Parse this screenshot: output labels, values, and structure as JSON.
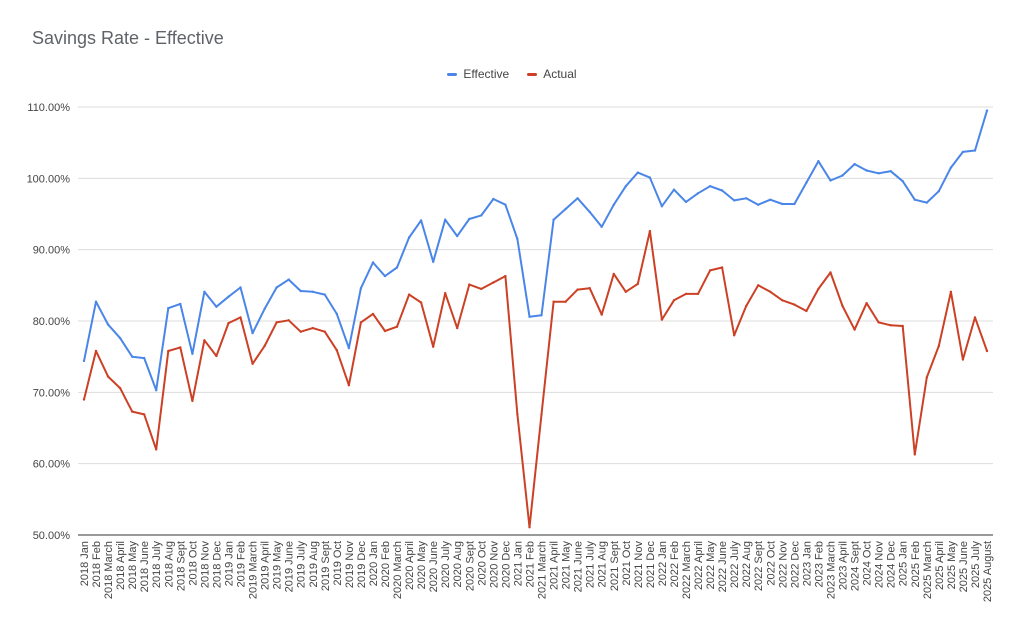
{
  "chart_data": {
    "type": "line",
    "title": "Savings Rate - Effective",
    "xlabel": "",
    "ylabel": "",
    "ylim": [
      50,
      110
    ],
    "y_ticks": [
      "50.00%",
      "60.00%",
      "70.00%",
      "80.00%",
      "90.00%",
      "100.00%",
      "110.00%"
    ],
    "legend_position": "top",
    "grid": true,
    "categories": [
      "2018 Jan",
      "2018 Feb",
      "2018 March",
      "2018 April",
      "2018 May",
      "2018 June",
      "2018 July",
      "2018 Aug",
      "2018 Sept",
      "2018 Oct",
      "2018 Nov",
      "2018 Dec",
      "2019 Jan",
      "2019 Feb",
      "2019 March",
      "2019 April",
      "2019 May",
      "2019 June",
      "2019 July",
      "2019 Aug",
      "2019 Sept",
      "2019 Oct",
      "2019 Nov",
      "2019 Dec",
      "2020 Jan",
      "2020 Feb",
      "2020 March",
      "2020 April",
      "2020 May",
      "2020 June",
      "2020 July",
      "2020 Aug",
      "2020 Sept",
      "2020 Oct",
      "2020 Nov",
      "2020 Dec",
      "2021 Jan",
      "2021 Feb",
      "2021 March",
      "2021 April",
      "2021 May",
      "2021 June",
      "2021 July",
      "2021 Aug",
      "2021 Sept",
      "2021 Oct",
      "2021 Nov",
      "2021 Dec",
      "2022 Jan",
      "2022 Feb",
      "2022 March",
      "2022 April",
      "2022 May",
      "2022 June",
      "2022 July",
      "2022 Aug",
      "2022 Sept",
      "2022 Oct",
      "2022 Nov",
      "2022 Dec",
      "2023 Jan",
      "2023 Feb",
      "2023 March",
      "2023 April",
      "2024 Sept",
      "2024 Oct",
      "2024 Nov",
      "2024 Dec",
      "2025 Jan",
      "2025 Feb",
      "2025 March",
      "2025 April",
      "2025 May",
      "2025 June",
      "2025 July",
      "2025 August"
    ],
    "series": [
      {
        "name": "Effective",
        "color": "#4a86e8",
        "values": [
          74.4,
          82.7,
          79.5,
          77.6,
          75.0,
          74.8,
          70.3,
          81.8,
          82.4,
          75.4,
          84.1,
          82.0,
          83.4,
          84.7,
          78.3,
          81.7,
          84.7,
          85.8,
          84.2,
          84.1,
          83.7,
          81.0,
          76.2,
          84.6,
          88.2,
          86.3,
          87.5,
          91.7,
          94.1,
          88.3,
          94.2,
          91.9,
          94.3,
          94.8,
          97.1,
          96.3,
          91.5,
          80.6,
          80.8,
          94.2,
          95.7,
          97.2,
          95.3,
          93.2,
          96.3,
          98.9,
          100.8,
          100.1,
          96.1,
          98.4,
          96.7,
          97.9,
          98.9,
          98.3,
          96.9,
          97.2,
          96.3,
          97.0,
          96.4,
          96.4,
          99.4,
          102.4,
          99.7,
          100.4,
          102.0,
          101.1,
          100.7,
          101.0,
          99.6,
          97.0,
          96.6,
          98.2,
          101.5,
          103.7,
          103.9,
          109.5
        ]
      },
      {
        "name": "Actual",
        "color": "#cc4125",
        "values": [
          69.0,
          75.8,
          72.2,
          70.6,
          67.3,
          66.9,
          62.0,
          75.8,
          76.3,
          68.8,
          77.3,
          75.1,
          79.7,
          80.5,
          74.0,
          76.5,
          79.8,
          80.1,
          78.5,
          79.0,
          78.5,
          75.9,
          71.0,
          79.8,
          81.0,
          78.6,
          79.2,
          83.7,
          82.6,
          76.4,
          83.9,
          79.0,
          85.1,
          84.5,
          85.4,
          86.3,
          66.9,
          51.1,
          66.9,
          82.7,
          82.7,
          84.4,
          84.6,
          80.9,
          86.6,
          84.1,
          85.2,
          92.6,
          80.2,
          82.9,
          83.8,
          83.8,
          87.1,
          87.5,
          78.0,
          82.1,
          85.0,
          84.1,
          82.9,
          82.3,
          81.4,
          84.5,
          86.8,
          82.1,
          78.8,
          82.5,
          79.8,
          79.4,
          79.3,
          61.3,
          72.1,
          76.5,
          84.1,
          74.6,
          80.5,
          75.8
        ]
      }
    ]
  }
}
